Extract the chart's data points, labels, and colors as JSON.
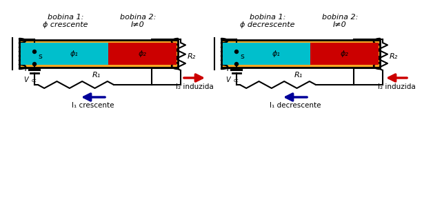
{
  "bg_color": "#ffffff",
  "orange": "#F5A623",
  "cyan": "#00BFCC",
  "red_core": "#CC0000",
  "red_arrow": "#CC0000",
  "blue_arrow": "#000099",
  "black": "#000000",
  "diagram1": {
    "title1": "bobina 1:",
    "title1b": "ϕ crescente",
    "title2": "bobina 2:",
    "title2b": "I≠0",
    "phi1_label": "ϕ₁",
    "phi2_label": "ϕ₂",
    "R2_label": "R₂",
    "R1_label": "R₁",
    "Vcc_label": "V",
    "Vcc_sub": "cc",
    "switch_label": "s",
    "I2_label": "I₂ induzida",
    "I1_label": "I₁ crescente",
    "switch_closed": true,
    "phi1_arrow_dir": "right",
    "phi2_arrow_dir": "left",
    "I2_arrow_dir": "right",
    "I1_arrow_dir": "left"
  },
  "diagram2": {
    "title1": "bobina 1:",
    "title1b": "ϕ decrescente",
    "title2": "bobina 2:",
    "title2b": "I≠0",
    "phi1_label": "ϕ₁",
    "phi2_label": "ϕ₂",
    "R2_label": "R₂",
    "R1_label": "R₁",
    "Vcc_label": "V",
    "Vcc_sub": "cc",
    "switch_label": "s",
    "I2_label": "I₂ induzida",
    "I1_label": "I₁ decrescente",
    "switch_closed": false,
    "phi1_arrow_dir": "right",
    "phi2_arrow_dir": "right",
    "I2_arrow_dir": "left",
    "I1_arrow_dir": "left"
  }
}
